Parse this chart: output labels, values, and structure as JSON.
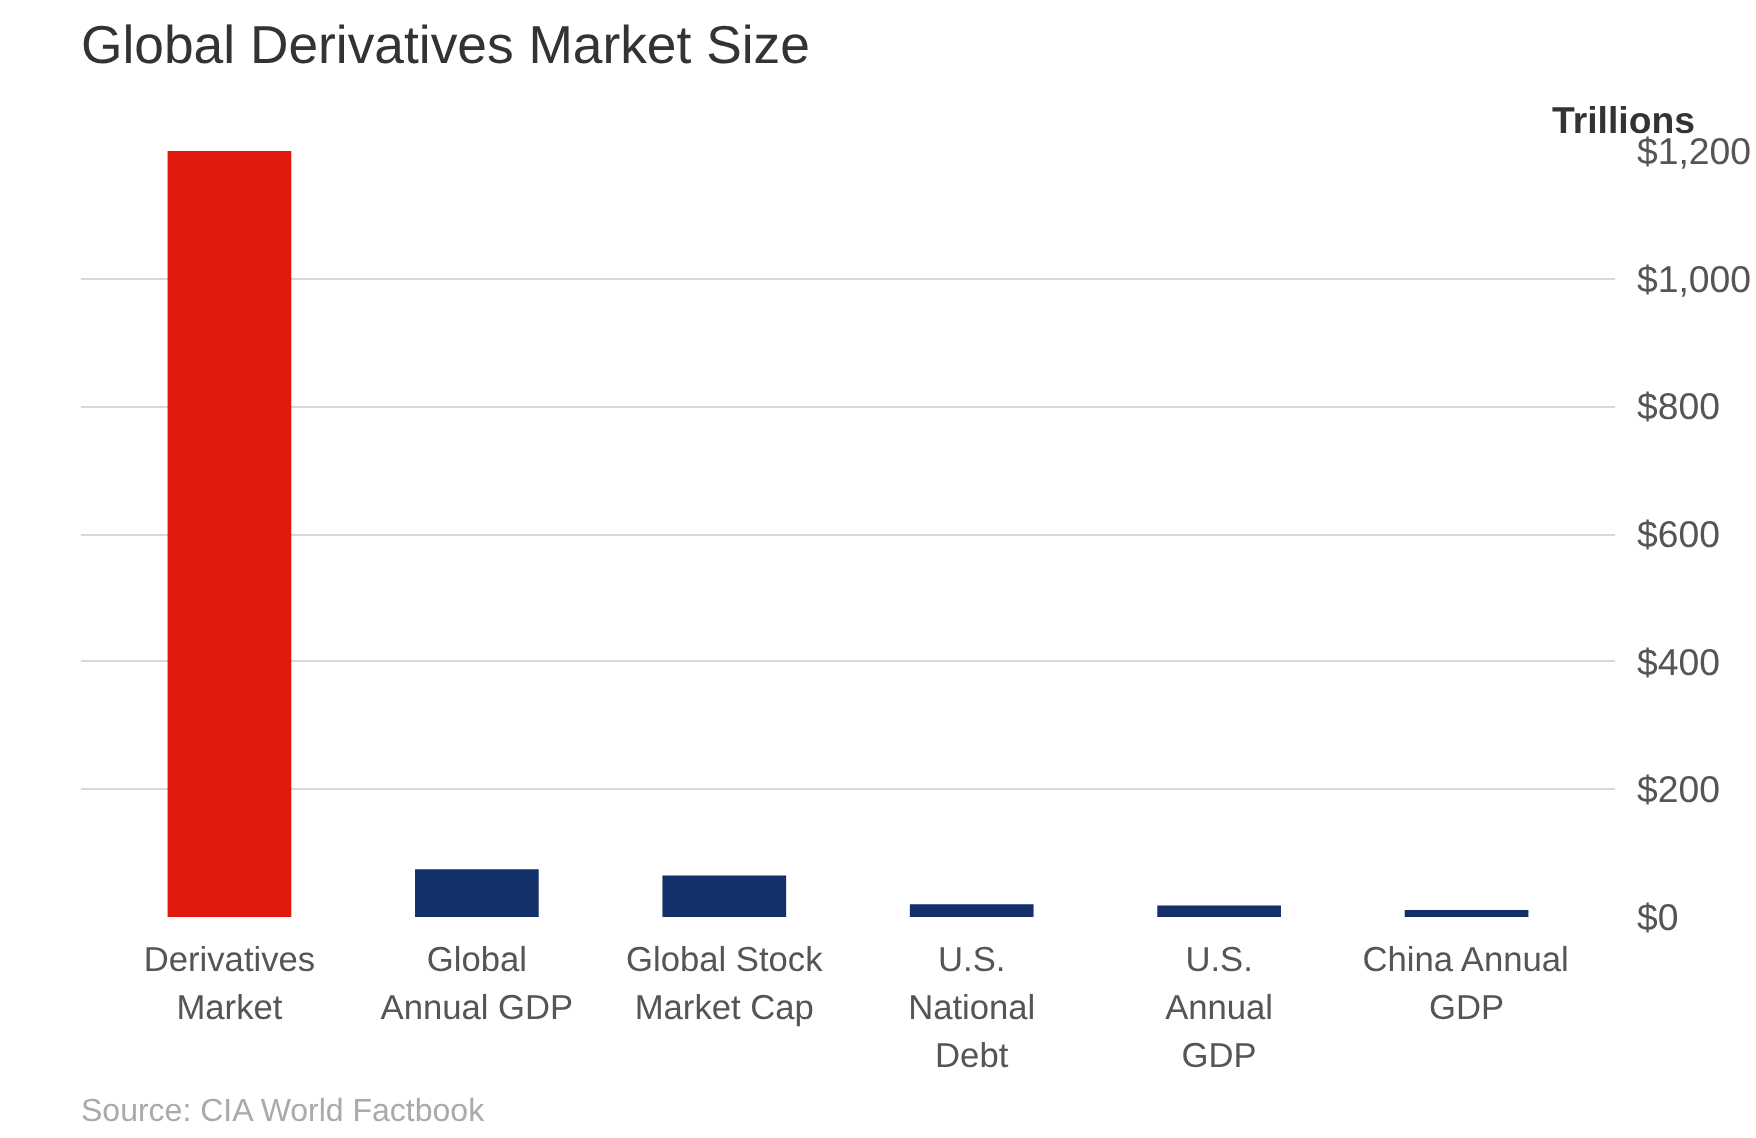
{
  "chart_data": {
    "type": "bar",
    "title": "Global Derivatives Market Size",
    "ylabel": "Trillions",
    "categories": [
      "Derivatives\nMarket",
      "Global\nAnnual GDP",
      "Global Stock\nMarket Cap",
      "U.S.\nNational\nDebt",
      "U.S.\nAnnual\nGDP",
      "China Annual\nGDP"
    ],
    "values": [
      1200,
      75,
      65,
      20,
      18,
      11
    ],
    "colors": [
      "#e01b0e",
      "#13306b",
      "#13306b",
      "#13306b",
      "#13306b",
      "#13306b"
    ],
    "ylim": [
      0,
      1200
    ],
    "yticks": [
      {
        "value": 0,
        "label": "$0"
      },
      {
        "value": 200,
        "label": "$200"
      },
      {
        "value": 400,
        "label": "$400"
      },
      {
        "value": 600,
        "label": "$600"
      },
      {
        "value": 800,
        "label": "$800"
      },
      {
        "value": 1000,
        "label": "$1,000"
      },
      {
        "value": 1200,
        "label": "$1,200"
      }
    ],
    "grid": "y",
    "annotations": [
      "Source: CIA World Factbook"
    ]
  }
}
